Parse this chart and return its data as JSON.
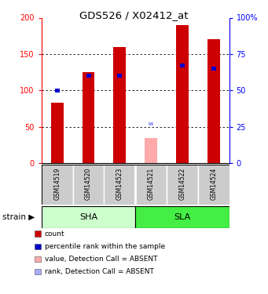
{
  "title": "GDS526 / X02412_at",
  "samples": [
    "GSM14519",
    "GSM14520",
    "GSM14523",
    "GSM14521",
    "GSM14522",
    "GSM14524"
  ],
  "absent": [
    false,
    false,
    false,
    true,
    false,
    false
  ],
  "red_values": [
    83,
    125,
    160,
    35,
    190,
    170
  ],
  "blue_values_pct": [
    50,
    60,
    60,
    27,
    67,
    65
  ],
  "ylim_left": [
    0,
    200
  ],
  "ylim_right": [
    0,
    100
  ],
  "y_ticks_left": [
    0,
    50,
    100,
    150,
    200
  ],
  "y_ticks_right": [
    0,
    25,
    50,
    75,
    100
  ],
  "y_tick_labels_left": [
    "0",
    "50",
    "100",
    "150",
    "200"
  ],
  "y_tick_labels_right": [
    "0",
    "25",
    "50",
    "75",
    "100%"
  ],
  "red_present": "#cc0000",
  "red_absent": "#ffaaaa",
  "blue_present": "#0000cc",
  "blue_absent": "#aaaaff",
  "bar_width": 0.4,
  "blue_bar_width": 0.15,
  "sha_color": "#ccffcc",
  "sla_color": "#44ee44",
  "sample_bg": "#cccccc",
  "legend_items": [
    {
      "color": "#cc0000",
      "label": "count"
    },
    {
      "color": "#0000cc",
      "label": "percentile rank within the sample"
    },
    {
      "color": "#ffaaaa",
      "label": "value, Detection Call = ABSENT"
    },
    {
      "color": "#aaaaff",
      "label": "rank, Detection Call = ABSENT"
    }
  ]
}
